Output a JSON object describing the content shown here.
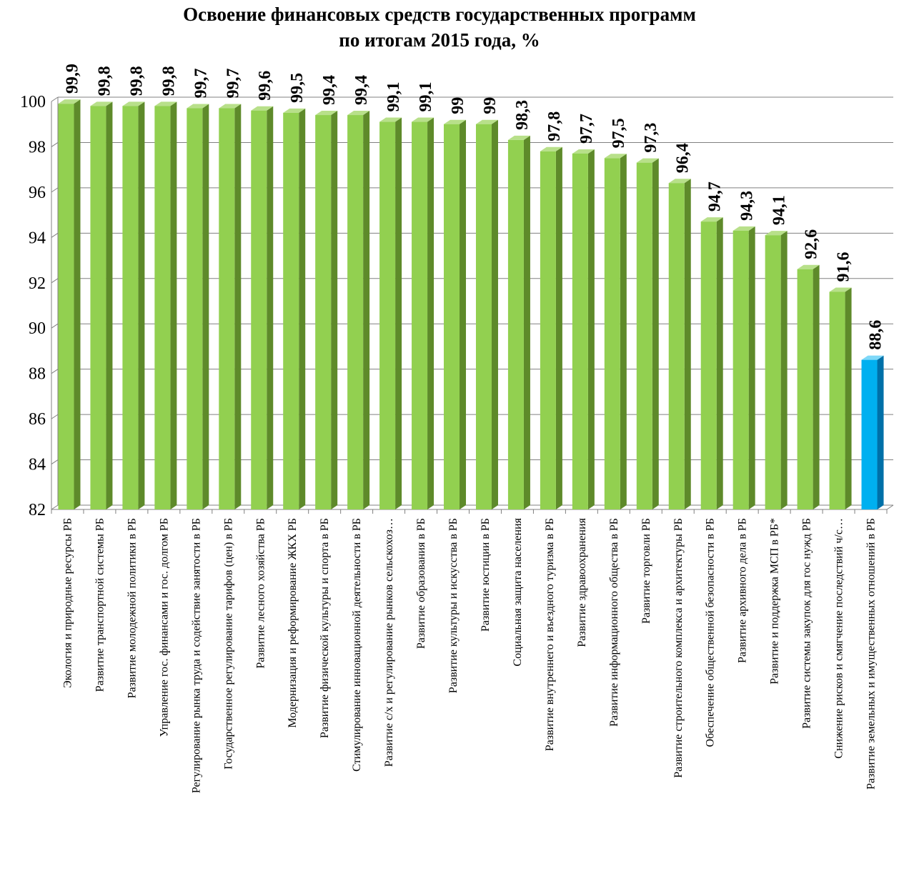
{
  "chart_data": {
    "type": "bar",
    "title": "Освоение финансовых средств государственных программ",
    "subtitle": "по итогам 2015 года, %",
    "xlabel": "",
    "ylabel": "",
    "ylim": [
      82,
      100
    ],
    "yticks": [
      82,
      84,
      86,
      88,
      90,
      92,
      94,
      96,
      98,
      100
    ],
    "grid": true,
    "legend": "none",
    "colors": {
      "bar": "#92D050",
      "highlight": "#00B0F0"
    },
    "categories": [
      "Экология и природные ресурсы РБ",
      "Развитие транспортной системы РБ",
      "Развитие молодежной политики в РБ",
      "Управление гос. финансами и гос. долгом РБ",
      "Регулирование рынка труда и содействие занятости в РБ",
      "Государственное регулирование тарифов (цен) в РБ",
      "Развитие лесного хозяйства РБ",
      "Модернизация и реформирование ЖКХ РБ",
      "Развитие физической культуры и спорта в РБ",
      "Стимулирование инновационной деятельности в РБ",
      "Развитие с/х и регулирование рынков сельскохоз…",
      "Развитие образования в РБ",
      "Развитие культуры и искусства в РБ",
      "Развитие юстиции в РБ",
      "Социальная защита населения",
      "Развитие внутреннего и въездного туризма в РБ",
      "Развитие здравоохранения",
      "Развитие информационного общества в РБ",
      "Развитие торговли РБ",
      "Развитие строительного комплекса и архитектуры РБ",
      "Обеспечение общественной безопасности в РБ",
      "Развитие архивного дела в РБ",
      "Развитие и поддержка МСП в РБ*",
      "Развитие системы закупок для гос нужд РБ",
      "Снижение рисков и смягчение последствий ч/с…",
      "Развитие земельных и имущественных отношений в РБ"
    ],
    "values": [
      99.9,
      99.8,
      99.8,
      99.8,
      99.7,
      99.7,
      99.6,
      99.5,
      99.4,
      99.4,
      99.1,
      99.1,
      99,
      99,
      98.3,
      97.8,
      97.7,
      97.5,
      97.3,
      96.4,
      94.7,
      94.3,
      94.1,
      92.6,
      91.6,
      88.6
    ],
    "data_labels": [
      "99,9",
      "99,8",
      "99,8",
      "99,8",
      "99,7",
      "99,7",
      "99,6",
      "99,5",
      "99,4",
      "99,4",
      "99,1",
      "99,1",
      "99",
      "99",
      "98,3",
      "97,8",
      "97,7",
      "97,5",
      "97,3",
      "96,4",
      "94,7",
      "94,3",
      "94,1",
      "92,6",
      "91,6",
      "88,6"
    ],
    "highlight_index": 25
  }
}
